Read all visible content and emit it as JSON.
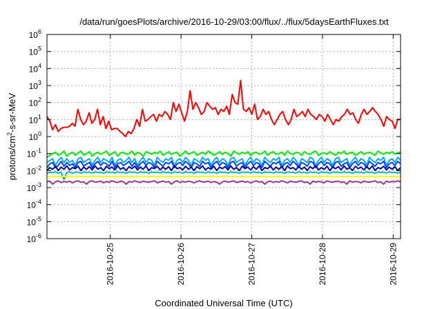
{
  "chart_data": {
    "type": "line",
    "title": "/data/run/goesPlots/archive/2016-10-29/03:00/flux/../flux/5daysEarthFluxes.txt",
    "xlabel": "Coordinated Universal Time (UTC)",
    "ylabel": {
      "pre": "protons/cm",
      "sup": "2",
      "post": "-s-sr-MeV"
    },
    "yscale": "log",
    "ylim_exp": [
      -6,
      6
    ],
    "ytick_exponents": [
      -6,
      -5,
      -4,
      -3,
      -2,
      -1,
      0,
      1,
      2,
      3,
      4,
      5,
      6
    ],
    "ytick_base": "10",
    "xlim": [
      "2016-10-24T02:30",
      "2016-10-29T02:30"
    ],
    "xticks": [
      "2016-10-25",
      "2016-10-26",
      "2016-10-27",
      "2016-10-28",
      "2016-10-29"
    ],
    "grid": true,
    "series": [
      {
        "color": "#ff0000",
        "values": [
          15,
          8,
          2.5,
          5,
          2,
          3,
          3.5,
          3.5,
          4,
          6,
          4,
          40,
          10,
          5,
          8,
          25,
          6,
          10,
          40,
          5,
          15,
          3,
          8,
          2.5,
          3,
          3,
          2,
          1.5,
          1,
          2,
          1.5,
          3,
          10,
          4,
          40,
          8,
          10,
          15,
          20,
          8,
          20,
          15,
          30,
          20,
          10,
          100,
          30,
          80,
          25,
          8,
          30,
          500,
          40,
          100,
          50,
          20,
          30,
          100,
          60,
          40,
          50,
          20,
          40,
          30,
          60,
          20,
          300,
          100,
          80,
          2000,
          40,
          30,
          50,
          20,
          80,
          10,
          15,
          40,
          20,
          30,
          10,
          5,
          10,
          20,
          30,
          10,
          5,
          10,
          40,
          15,
          20,
          30,
          15,
          40,
          20,
          15,
          10,
          20,
          15,
          8,
          20,
          10,
          5,
          10,
          8,
          15,
          20,
          40,
          20,
          25,
          10,
          6,
          20,
          40,
          20,
          30,
          50,
          30,
          20,
          10,
          4,
          15,
          10,
          8,
          3,
          10,
          10
        ]
      },
      {
        "color": "#00ee00",
        "values": [
          0.06,
          0.08,
          0.1,
          0.12,
          0.08,
          0.1,
          0.14,
          0.07,
          0.1,
          0.12,
          0.08,
          0.11,
          0.14,
          0.08,
          0.1,
          0.13,
          0.07,
          0.1,
          0.12,
          0.09,
          0.11,
          0.14,
          0.08,
          0.1,
          0.13,
          0.07,
          0.11,
          0.12,
          0.09,
          0.1,
          0.14,
          0.08,
          0.12,
          0.1,
          0.07,
          0.13,
          0.11,
          0.09,
          0.12,
          0.1,
          0.14,
          0.08,
          0.1,
          0.13,
          0.09,
          0.11,
          0.12,
          0.07,
          0.1,
          0.14,
          0.09,
          0.11,
          0.13,
          0.08,
          0.1,
          0.12,
          0.09,
          0.14,
          0.11,
          0.08,
          0.1,
          0.13,
          0.09,
          0.12,
          0.1,
          0.07,
          0.14,
          0.11,
          0.09,
          0.12,
          0.1,
          0.13,
          0.08,
          0.11,
          0.12,
          0.09,
          0.1,
          0.14,
          0.08,
          0.11,
          0.13,
          0.09,
          0.1,
          0.12,
          0.08,
          0.14,
          0.1,
          0.09,
          0.12,
          0.11,
          0.08,
          0.13,
          0.1,
          0.09,
          0.12,
          0.14,
          0.08,
          0.1,
          0.11,
          0.09,
          0.13,
          0.1,
          0.08,
          0.12,
          0.1,
          0.14,
          0.09,
          0.11,
          0.12,
          0.08,
          0.1,
          0.13,
          0.09,
          0.11,
          0.12,
          0.1,
          0.08,
          0.14,
          0.11,
          0.09,
          0.12,
          0.1,
          0.13,
          0.09,
          0.11,
          0.12
        ]
      },
      {
        "color": "#00aaff",
        "values": [
          0.03,
          0.04,
          0.05,
          0.02,
          0.04,
          0.06,
          0.03,
          0.05,
          0.03,
          0.04,
          0.02,
          0.05,
          0.06,
          0.03,
          0.04,
          0.05,
          0.02,
          0.04,
          0.06,
          0.03,
          0.05,
          0.04,
          0.03,
          0.06,
          0.02,
          0.04,
          0.05,
          0.03,
          0.04,
          0.06,
          0.03,
          0.05,
          0.02,
          0.04,
          0.06,
          0.03,
          0.05,
          0.04,
          0.02,
          0.06,
          0.04,
          0.03,
          0.05,
          0.04,
          0.06,
          0.02,
          0.04,
          0.05,
          0.03,
          0.06,
          0.04,
          0.02,
          0.05,
          0.04,
          0.03,
          0.06,
          0.04,
          0.05,
          0.02,
          0.04,
          0.06,
          0.03,
          0.05,
          0.04,
          0.02,
          0.05,
          0.06,
          0.03,
          0.04,
          0.05,
          0.02,
          0.04,
          0.06,
          0.03,
          0.05,
          0.04,
          0.02,
          0.06,
          0.04,
          0.03,
          0.05,
          0.04,
          0.06,
          0.02,
          0.04,
          0.05,
          0.03,
          0.06,
          0.04,
          0.02,
          0.05,
          0.04,
          0.03,
          0.06,
          0.05,
          0.02,
          0.04,
          0.06,
          0.03,
          0.05,
          0.04,
          0.02,
          0.05,
          0.06,
          0.03,
          0.04,
          0.05,
          0.02,
          0.04,
          0.06,
          0.03,
          0.05,
          0.04,
          0.02,
          0.06,
          0.04,
          0.03,
          0.05,
          0.04,
          0.06,
          0.02,
          0.04,
          0.05,
          0.03,
          0.06,
          0.04
        ]
      },
      {
        "color": "#0044ff",
        "values": [
          0.015,
          0.025,
          0.03,
          0.015,
          0.02,
          0.035,
          0.018,
          0.03,
          0.02,
          0.025,
          0.015,
          0.03,
          0.035,
          0.018,
          0.025,
          0.03,
          0.015,
          0.025,
          0.035,
          0.02,
          0.03,
          0.025,
          0.018,
          0.035,
          0.015,
          0.025,
          0.03,
          0.02,
          0.025,
          0.035,
          0.018,
          0.03,
          0.015,
          0.025,
          0.035,
          0.02,
          0.03,
          0.025,
          0.015,
          0.035,
          0.025,
          0.018,
          0.03,
          0.025,
          0.035,
          0.015,
          0.025,
          0.03,
          0.02,
          0.035,
          0.025,
          0.015,
          0.03,
          0.025,
          0.018,
          0.035,
          0.025,
          0.03,
          0.015,
          0.025,
          0.035,
          0.02,
          0.03,
          0.025,
          0.015,
          0.03,
          0.035,
          0.018,
          0.025,
          0.03,
          0.015,
          0.025,
          0.035,
          0.02,
          0.03,
          0.025,
          0.015,
          0.035,
          0.025,
          0.018,
          0.03,
          0.025,
          0.035,
          0.015,
          0.025,
          0.03,
          0.02,
          0.035,
          0.025,
          0.015,
          0.03,
          0.025,
          0.018,
          0.035,
          0.03,
          0.015,
          0.025,
          0.035,
          0.02,
          0.03,
          0.025,
          0.015,
          0.03,
          0.035,
          0.018,
          0.025,
          0.03,
          0.015,
          0.025,
          0.035,
          0.02,
          0.03,
          0.025,
          0.015,
          0.035,
          0.025,
          0.018,
          0.03,
          0.025,
          0.035,
          0.015,
          0.025,
          0.03,
          0.02,
          0.035,
          0.025
        ]
      },
      {
        "color": "#0000aa",
        "values": [
          0.01,
          0.015,
          0.012,
          0.018,
          0.01,
          0.016,
          0.012,
          0.019,
          0.011,
          0.015,
          0.013,
          0.018,
          0.01,
          0.016,
          0.012,
          0.017,
          0.011,
          0.019,
          0.012,
          0.015,
          0.01,
          0.018,
          0.013,
          0.016,
          0.011,
          0.019,
          0.012,
          0.015,
          0.01,
          0.017,
          0.013,
          0.018,
          0.011,
          0.016,
          0.012,
          0.019,
          0.01,
          0.015,
          0.013,
          0.018,
          0.011,
          0.016,
          0.012,
          0.017,
          0.01,
          0.019,
          0.013,
          0.015,
          0.011,
          0.018,
          0.012,
          0.016,
          0.01,
          0.017,
          0.013,
          0.019,
          0.011,
          0.015,
          0.012,
          0.018,
          0.01,
          0.016,
          0.013,
          0.017,
          0.011,
          0.019,
          0.012,
          0.015,
          0.01,
          0.018,
          0.013,
          0.016,
          0.011,
          0.017,
          0.012,
          0.019,
          0.01,
          0.015,
          0.013,
          0.018,
          0.011,
          0.016,
          0.012,
          0.017,
          0.01,
          0.019,
          0.013,
          0.015,
          0.011,
          0.018,
          0.012,
          0.016,
          0.01,
          0.017,
          0.013,
          0.019,
          0.011,
          0.015,
          0.012,
          0.018,
          0.01,
          0.016,
          0.013,
          0.017,
          0.011,
          0.019,
          0.012,
          0.015,
          0.01,
          0.018,
          0.013,
          0.016,
          0.011,
          0.017,
          0.012,
          0.019,
          0.01,
          0.015,
          0.013,
          0.018,
          0.011,
          0.016,
          0.012,
          0.017,
          0.01,
          0.015
        ]
      },
      {
        "color": "#00bbaa",
        "values": [
          0.007,
          0.008,
          0.0075,
          0.0085,
          0.007,
          0.008,
          0.003,
          0.0078,
          0.0085,
          0.007,
          0.008,
          0.0082,
          0.007,
          0.0085,
          0.0078,
          0.008,
          0.0072,
          0.0085,
          0.0076,
          0.008,
          0.007,
          0.0084,
          0.0078,
          0.008,
          0.0072,
          0.0086,
          0.0076,
          0.008,
          0.007,
          0.0084,
          0.0079,
          0.008,
          0.0072,
          0.0085,
          0.0077,
          0.008,
          0.007,
          0.0083,
          0.0078,
          0.008,
          0.0073,
          0.0086,
          0.0076,
          0.008,
          0.007,
          0.0084,
          0.0078,
          0.008,
          0.0072,
          0.0085,
          0.0077,
          0.008,
          0.007,
          0.0083,
          0.0079,
          0.008,
          0.0072,
          0.0086,
          0.0076,
          0.008,
          0.007,
          0.0084,
          0.0078,
          0.008,
          0.0072,
          0.0085,
          0.0077,
          0.008,
          0.007,
          0.0083,
          0.0078,
          0.008,
          0.0073,
          0.0086,
          0.0076,
          0.008,
          0.007,
          0.0084,
          0.0078,
          0.008,
          0.0072,
          0.0085,
          0.0077,
          0.008,
          0.007,
          0.0083,
          0.0079,
          0.008,
          0.0072,
          0.0086,
          0.0076,
          0.008,
          0.007,
          0.0084,
          0.0078,
          0.008,
          0.0072,
          0.0085,
          0.0077,
          0.008,
          0.007,
          0.0083,
          0.0078,
          0.008,
          0.0073,
          0.0086,
          0.0076,
          0.008,
          0.007,
          0.0084,
          0.0078,
          0.008,
          0.0072,
          0.0085,
          0.0077,
          0.008,
          0.007,
          0.0083,
          0.0079,
          0.008,
          0.0072,
          0.0086,
          0.0076,
          0.008,
          0.007,
          0.0084
        ]
      },
      {
        "color": "#ffff00",
        "values": [
          0.0045,
          0.0045,
          0.0045,
          0.0045,
          0.0045,
          0.0045,
          0.0045,
          0.0045,
          0.0045,
          0.0045,
          0.0045,
          0.0045,
          0.0045,
          0.0045,
          0.0045,
          0.0045,
          0.0045,
          0.0045,
          0.0045,
          0.0045,
          0.0045,
          0.0045,
          0.0045,
          0.0045,
          0.0045,
          0.0045,
          0.0045,
          0.0045,
          0.0045,
          0.0045,
          0.0045,
          0.0045,
          0.0045,
          0.0045,
          0.0045,
          0.0045,
          0.0045,
          0.0045,
          0.0045,
          0.0045,
          0.0045,
          0.0045,
          0.0045,
          0.0045,
          0.0045,
          0.0045,
          0.0045,
          0.0045,
          0.0045,
          0.0045,
          0.0045,
          0.0045,
          0.0045,
          0.0045,
          0.0045,
          0.0045,
          0.0045,
          0.0045,
          0.0045,
          0.0045,
          0.0045,
          0.0045,
          0.0045,
          0.0045,
          0.0045,
          0.0045,
          0.0045,
          0.0045,
          0.0045,
          0.0045,
          0.0045,
          0.0045,
          0.0045,
          0.0045,
          0.0045,
          0.0045,
          0.0045,
          0.0045,
          0.0045,
          0.0045,
          0.0045,
          0.0045,
          0.0045,
          0.0045,
          0.0045,
          0.0045,
          0.0045,
          0.0045,
          0.0045,
          0.0045,
          0.0045,
          0.0045,
          0.0045,
          0.0045,
          0.0045,
          0.0045,
          0.0045,
          0.0045,
          0.0045,
          0.0045,
          0.0045,
          0.0045,
          0.0045,
          0.0045,
          0.0045,
          0.0045,
          0.0045,
          0.0045,
          0.0045,
          0.0045,
          0.0045,
          0.0045,
          0.0045,
          0.0045,
          0.0045,
          0.0045,
          0.0045,
          0.0045,
          0.0045,
          0.0045,
          0.0045,
          0.0045,
          0.0045,
          0.0045,
          0.0045,
          0.0045
        ]
      },
      {
        "color": "#993399",
        "values": [
          0.0022,
          0.0024,
          0.0016,
          0.0022,
          0.0025,
          0.002,
          0.0023,
          0.0021,
          0.0024,
          0.0019,
          0.0023,
          0.0025,
          0.0021,
          0.0022,
          0.0016,
          0.0023,
          0.0025,
          0.0021,
          0.0022,
          0.0024,
          0.0019,
          0.0023,
          0.0021,
          0.0025,
          0.0022,
          0.002,
          0.0024,
          0.0022,
          0.0016,
          0.0023,
          0.0021,
          0.0025,
          0.0022,
          0.002,
          0.0024,
          0.0022,
          0.0021,
          0.0023,
          0.0025,
          0.0019,
          0.0022,
          0.0024,
          0.0021,
          0.0023,
          0.0016,
          0.0022,
          0.0025,
          0.002,
          0.0023,
          0.0021,
          0.0024,
          0.0022,
          0.0019,
          0.0023,
          0.0025,
          0.0021,
          0.0022,
          0.0024,
          0.002,
          0.0023,
          0.0021,
          0.0016,
          0.0022,
          0.0024,
          0.0021,
          0.0023,
          0.0025,
          0.002,
          0.0022,
          0.0024,
          0.0021,
          0.0023,
          0.0019,
          0.0022,
          0.0025,
          0.0021,
          0.0023,
          0.0016,
          0.0022,
          0.0024,
          0.002,
          0.0023,
          0.0021,
          0.0025,
          0.0022,
          0.0019,
          0.0024,
          0.0022,
          0.0021,
          0.0023,
          0.0025,
          0.002,
          0.0022,
          0.0016,
          0.0024,
          0.0021,
          0.0023,
          0.0022,
          0.0019,
          0.0025,
          0.0022,
          0.0021,
          0.0023,
          0.0024,
          0.002,
          0.0022,
          0.0016,
          0.0025,
          0.0021,
          0.0023,
          0.0022,
          0.0019,
          0.0024,
          0.0022,
          0.0021,
          0.0023,
          0.0025,
          0.002,
          0.0022,
          0.0016,
          0.0024,
          0.0021,
          0.0023,
          0.0022,
          0.0025,
          0.0022
        ]
      }
    ]
  }
}
